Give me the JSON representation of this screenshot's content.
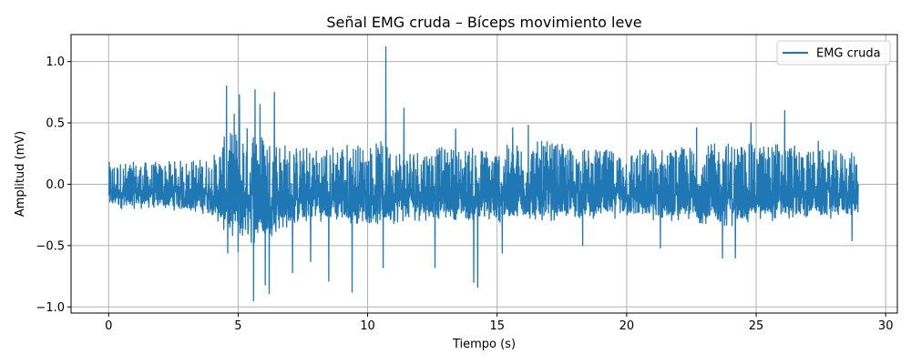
{
  "chart_data": {
    "type": "line",
    "title": "Señal EMG cruda – Bíceps movimiento leve",
    "xlabel": "Tiempo (s)",
    "ylabel": "Amplitud (mV)",
    "xlim": [
      -1.45,
      30.45
    ],
    "ylim": [
      -1.05,
      1.22
    ],
    "xticks": [
      0,
      5,
      10,
      15,
      20,
      25,
      30
    ],
    "xtick_labels": [
      "0",
      "5",
      "10",
      "15",
      "20",
      "25",
      "30"
    ],
    "yticks": [
      -1.0,
      -0.5,
      0.0,
      0.5,
      1.0
    ],
    "ytick_labels": [
      "−1.0",
      "−0.5",
      "0.0",
      "0.5",
      "1.0"
    ],
    "grid": true,
    "legend_position": "top-right",
    "series": [
      {
        "name": "EMG cruda",
        "color": "#1f77b4",
        "x_range": [
          0,
          28.95
        ],
        "envelope": {
          "t": [
            0,
            2,
            4,
            4.5,
            5,
            5.5,
            6,
            6.5,
            7,
            8,
            9,
            10,
            10.5,
            11,
            12,
            13,
            14,
            15,
            16,
            17,
            18,
            19,
            20,
            21,
            22,
            23,
            24,
            25,
            26,
            27,
            28,
            28.95
          ],
          "upper": [
            0.18,
            0.18,
            0.22,
            0.4,
            0.45,
            0.5,
            0.42,
            0.38,
            0.32,
            0.3,
            0.35,
            0.32,
            0.35,
            0.3,
            0.3,
            0.3,
            0.3,
            0.3,
            0.35,
            0.35,
            0.3,
            0.28,
            0.28,
            0.3,
            0.3,
            0.32,
            0.35,
            0.32,
            0.35,
            0.28,
            0.28,
            0.25
          ],
          "lower": [
            -0.2,
            -0.2,
            -0.25,
            -0.4,
            -0.45,
            -0.5,
            -0.45,
            -0.4,
            -0.35,
            -0.3,
            -0.32,
            -0.32,
            -0.35,
            -0.32,
            -0.3,
            -0.28,
            -0.3,
            -0.32,
            -0.3,
            -0.3,
            -0.28,
            -0.28,
            -0.28,
            -0.3,
            -0.3,
            -0.32,
            -0.35,
            -0.3,
            -0.3,
            -0.28,
            -0.28,
            -0.25
          ]
        },
        "peaks": [
          {
            "x": 4.55,
            "y": 0.8
          },
          {
            "x": 5.05,
            "y": 0.73
          },
          {
            "x": 5.65,
            "y": 0.77
          },
          {
            "x": 6.4,
            "y": 0.75
          },
          {
            "x": 4.85,
            "y": 0.57
          },
          {
            "x": 5.85,
            "y": 0.65
          },
          {
            "x": 7.1,
            "y": 0.49
          },
          {
            "x": 10.7,
            "y": 1.12
          },
          {
            "x": 11.4,
            "y": 0.62
          },
          {
            "x": 13.4,
            "y": 0.45
          },
          {
            "x": 15.6,
            "y": 0.46
          },
          {
            "x": 16.2,
            "y": 0.48
          },
          {
            "x": 22.7,
            "y": 0.46
          },
          {
            "x": 24.8,
            "y": 0.5
          },
          {
            "x": 26.1,
            "y": 0.6
          },
          {
            "x": 27.4,
            "y": 0.35
          },
          {
            "x": 4.6,
            "y": -0.56
          },
          {
            "x": 5.0,
            "y": -0.55
          },
          {
            "x": 5.6,
            "y": -0.95
          },
          {
            "x": 6.05,
            "y": -0.82
          },
          {
            "x": 6.2,
            "y": -0.89
          },
          {
            "x": 7.1,
            "y": -0.72
          },
          {
            "x": 7.8,
            "y": -0.63
          },
          {
            "x": 8.5,
            "y": -0.79
          },
          {
            "x": 9.4,
            "y": -0.88
          },
          {
            "x": 10.6,
            "y": -0.68
          },
          {
            "x": 12.6,
            "y": -0.68
          },
          {
            "x": 14.1,
            "y": -0.8
          },
          {
            "x": 14.25,
            "y": -0.84
          },
          {
            "x": 15.2,
            "y": -0.56
          },
          {
            "x": 18.3,
            "y": -0.5
          },
          {
            "x": 21.3,
            "y": -0.52
          },
          {
            "x": 24.2,
            "y": -0.6
          },
          {
            "x": 23.7,
            "y": -0.6
          },
          {
            "x": 28.7,
            "y": -0.46
          }
        ]
      }
    ]
  }
}
